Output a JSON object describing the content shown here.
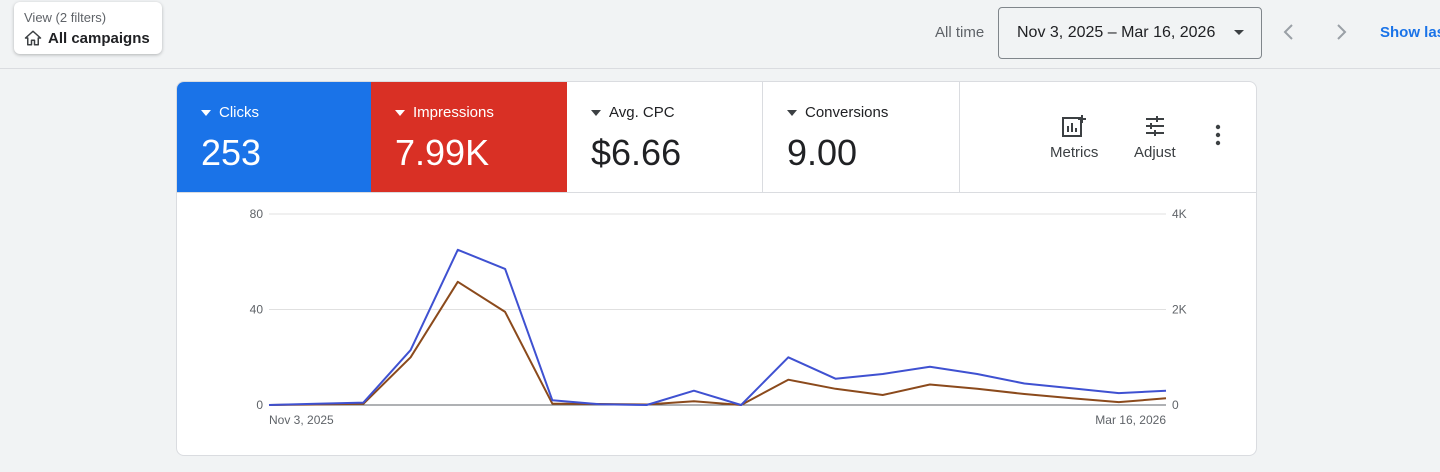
{
  "header": {
    "view_filter": {
      "caption": "View (2 filters)",
      "value": "All campaigns",
      "icon": "home-icon"
    },
    "range_label": "All time",
    "date_range": "Nov 3, 2025 – Mar 16, 2026",
    "show_link": "Show las"
  },
  "tiles": [
    {
      "label": "Clicks",
      "value": "253",
      "color": "#1a73e8"
    },
    {
      "label": "Impressions",
      "value": "7.99K",
      "color": "#d93025"
    },
    {
      "label": "Avg. CPC",
      "value": "$6.66"
    },
    {
      "label": "Conversions",
      "value": "9.00"
    }
  ],
  "tools": {
    "metrics": "Metrics",
    "adjust": "Adjust"
  },
  "chart_data": {
    "type": "line",
    "x_start_label": "Nov 3, 2025",
    "x_end_label": "Mar 16, 2026",
    "left_axis": {
      "ticks": [
        "0",
        "40",
        "80"
      ],
      "ylim": [
        0,
        80
      ]
    },
    "right_axis": {
      "ticks": [
        "0",
        "2K",
        "4K"
      ],
      "ylim": [
        0,
        4000
      ]
    },
    "series": [
      {
        "name": "Clicks",
        "axis": "left",
        "color": "#3f51d1",
        "values": [
          0,
          0.5,
          1,
          23,
          65,
          57,
          2,
          0.3,
          0,
          6,
          0,
          20,
          11,
          13,
          16,
          13,
          9,
          7,
          5,
          6
        ]
      },
      {
        "name": "Impressions",
        "axis": "right",
        "color": "#8b4a1c",
        "values": [
          0,
          10,
          25,
          1000,
          2580,
          1950,
          30,
          20,
          10,
          80,
          0,
          530,
          340,
          210,
          430,
          340,
          230,
          140,
          60,
          140
        ]
      }
    ],
    "grid": true
  }
}
